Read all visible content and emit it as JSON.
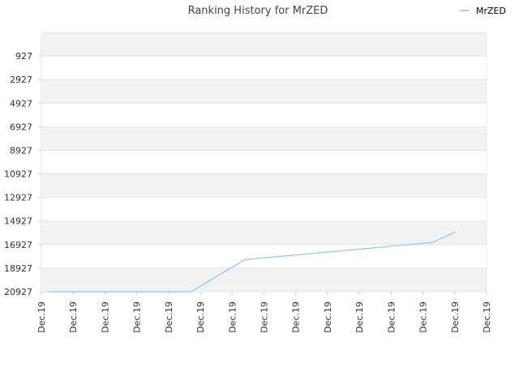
{
  "chart_data": {
    "type": "line",
    "title": "Ranking History for MrZED",
    "xlabel": "",
    "ylabel": "",
    "y_reversed": true,
    "ylim": [
      20927,
      0
    ],
    "y_ticks": [
      927,
      2927,
      4927,
      6927,
      8927,
      10927,
      12927,
      14927,
      16927,
      18927,
      20927
    ],
    "x_ticks": [
      "Dec.19",
      "Dec.19",
      "Dec.19",
      "Dec.19",
      "Dec.19",
      "Dec.19",
      "Dec.19",
      "Dec.19",
      "Dec.19",
      "Dec.19",
      "Dec.19",
      "Dec.19",
      "Dec.19",
      "Dec.19",
      "Dec.19"
    ],
    "legend_position": "top-right",
    "grid": true,
    "series": [
      {
        "name": "MrZED",
        "color": "#90c3f0",
        "x": [
          0.25,
          4.7,
          6.4,
          12.3,
          13.0
        ],
        "y": [
          20927,
          20927,
          18200,
          16750,
          15870
        ]
      }
    ]
  }
}
